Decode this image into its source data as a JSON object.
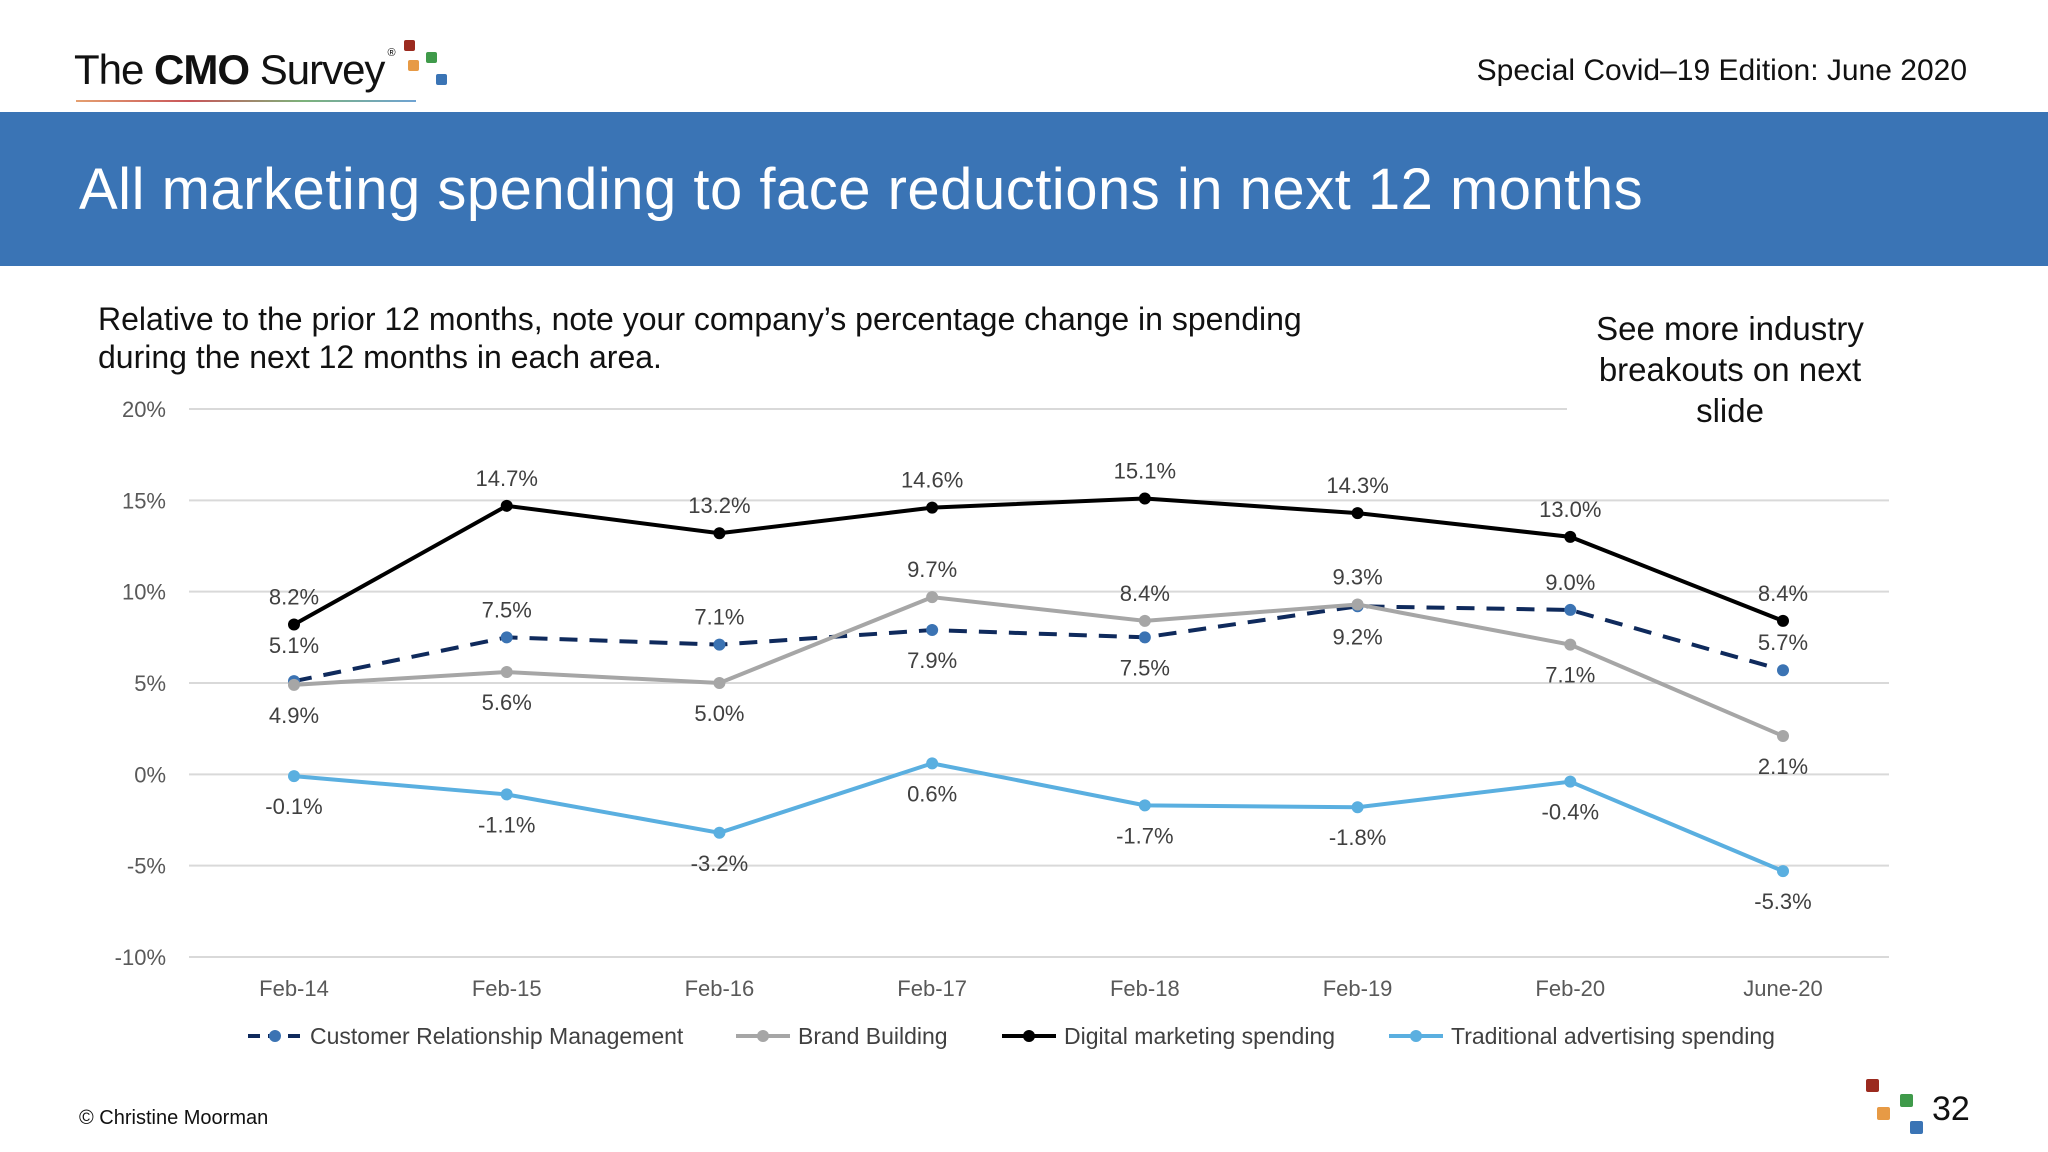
{
  "header": {
    "logo": "The CMO Survey",
    "edition": "Special Covid–19 Edition: June 2020",
    "title": "All marketing spending to face reductions in next 12 months"
  },
  "subtitle": "Relative to the prior 12 months, note your company’s percentage change in spending during the next 12 months in each area.",
  "side_note": "See more industry breakouts on next slide",
  "footer": {
    "copyright": "© Christine Moorman",
    "page_number": "32"
  },
  "colors": {
    "band": "#3a74b5",
    "logo_squares": [
      "#9b2a1f",
      "#e79a45",
      "#3f9a4a",
      "#3a74b5"
    ]
  },
  "chart_data": {
    "type": "line",
    "categories": [
      "Feb-14",
      "Feb-15",
      "Feb-16",
      "Feb-17",
      "Feb-18",
      "Feb-19",
      "Feb-20",
      "June-20"
    ],
    "ylim": [
      -10,
      20
    ],
    "yticks": [
      "-10%",
      "-5%",
      "0%",
      "5%",
      "10%",
      "15%",
      "20%"
    ],
    "ytick_values": [
      -10,
      -5,
      0,
      5,
      10,
      15,
      20
    ],
    "grid": true,
    "legend_position": "bottom",
    "series": [
      {
        "name": "Customer Relationship Management",
        "color": "#0f2a5c",
        "marker": "#3b73b3",
        "dash": true,
        "values": [
          5.1,
          7.5,
          7.1,
          7.9,
          7.5,
          9.2,
          9.0,
          5.7
        ],
        "labels": [
          "5.1%",
          "7.5%",
          "7.1%",
          "7.9%",
          "7.5%",
          "9.2%",
          "9.0%",
          "5.7%"
        ]
      },
      {
        "name": "Brand Building",
        "color": "#a6a6a6",
        "marker": "#a6a6a6",
        "dash": false,
        "values": [
          4.9,
          5.6,
          5.0,
          9.7,
          8.4,
          9.3,
          7.1,
          2.1
        ],
        "labels": [
          "4.9%",
          "5.6%",
          "5.0%",
          "9.7%",
          "8.4%",
          "9.3%",
          "7.1%",
          "2.1%"
        ]
      },
      {
        "name": "Digital marketing spending",
        "color": "#000000",
        "marker": "#000000",
        "dash": false,
        "values": [
          8.2,
          14.7,
          13.2,
          14.6,
          15.1,
          14.3,
          13.0,
          8.4
        ],
        "labels": [
          "8.2%",
          "14.7%",
          "13.2%",
          "14.6%",
          "15.1%",
          "14.3%",
          "13.0%",
          "8.4%"
        ]
      },
      {
        "name": "Traditional advertising spending",
        "color": "#5aafe0",
        "marker": "#5aafe0",
        "dash": false,
        "values": [
          -0.1,
          -1.1,
          -3.2,
          0.6,
          -1.7,
          -1.8,
          -0.4,
          -5.3
        ],
        "labels": [
          "-0.1%",
          "-1.1%",
          "-3.2%",
          "0.6%",
          "-1.7%",
          "-1.8%",
          "-0.4%",
          "-5.3%"
        ]
      }
    ]
  }
}
